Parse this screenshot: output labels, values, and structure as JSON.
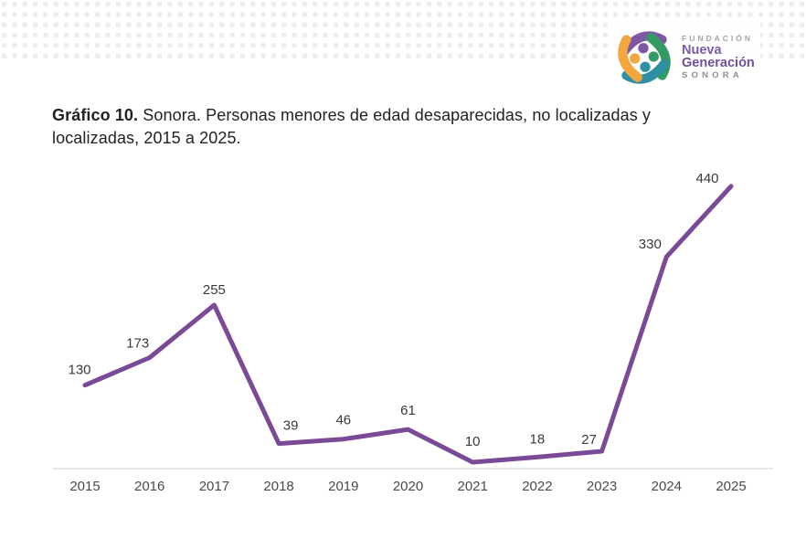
{
  "header": {
    "logo": {
      "line1": "FUNDACIÓN",
      "line2": "Nueva",
      "line3": "Generación",
      "line4": "SONORA",
      "mark_icon": "four-people-pinwheel"
    }
  },
  "title": {
    "bold": "Gráfico 10.",
    "line1_rest": " Sonora. Personas menores de edad desaparecidas, no localizadas y",
    "line2": "localizadas, 2015 a 2025."
  },
  "chart_data": {
    "type": "line",
    "categories": [
      "2015",
      "2016",
      "2017",
      "2018",
      "2019",
      "2020",
      "2021",
      "2022",
      "2023",
      "2024",
      "2025"
    ],
    "values": [
      130,
      173,
      255,
      39,
      46,
      61,
      10,
      18,
      27,
      330,
      440
    ],
    "title": "Gráfico 10. Sonora. Personas menores de edad desaparecidas, no localizadas y localizadas, 2015 a 2025.",
    "xlabel": "",
    "ylabel": "",
    "ylim": [
      0,
      460
    ],
    "grid": false,
    "legend": "none",
    "data_labels": true,
    "line_color": "#7b4a97",
    "label_color": "#3a3a3a",
    "tick_color": "#4a4a4a",
    "axis_color": "#d9d9d9"
  },
  "colors": {
    "background": "#ffffff",
    "dot_pattern": "#ededed",
    "line": "#7b4a97",
    "logo_purple": "#7e57a5",
    "logo_green": "#339a63",
    "logo_teal": "#2f8fa3",
    "logo_orange": "#f3a73e",
    "title_text": "#222222"
  }
}
